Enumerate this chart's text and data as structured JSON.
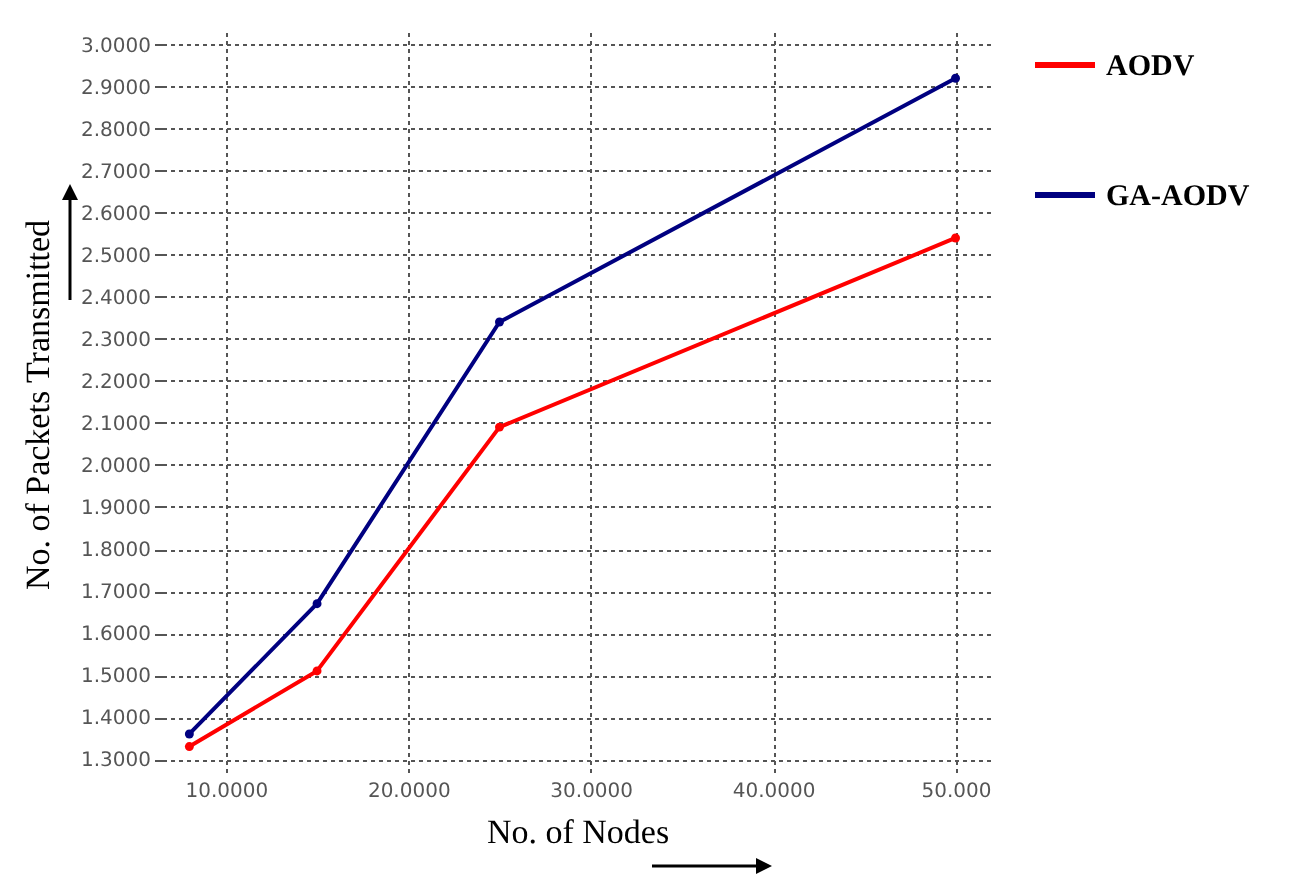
{
  "chart_data": {
    "type": "line",
    "xlabel": "No. of Nodes",
    "ylabel": "No. of Packets Transmitted",
    "x": [
      8,
      15,
      25,
      50
    ],
    "series": [
      {
        "name": "AODV",
        "color": "#ff0000",
        "values": [
          1.33,
          1.51,
          2.09,
          2.54
        ]
      },
      {
        "name": "GA-AODV",
        "color": "#000080",
        "values": [
          1.36,
          1.67,
          2.34,
          2.92
        ]
      }
    ],
    "xlim": [
      6.5,
      52
    ],
    "ylim": [
      1.26,
      3.03
    ],
    "xticks": [
      {
        "value": 10,
        "label": "10.0000"
      },
      {
        "value": 20,
        "label": "20.0000"
      },
      {
        "value": 30,
        "label": "30.0000"
      },
      {
        "value": 40,
        "label": "40.0000"
      },
      {
        "value": 50,
        "label": "50.000"
      }
    ],
    "yticks": [
      {
        "value": 1.3,
        "label": "1.3000"
      },
      {
        "value": 1.4,
        "label": "1.4000"
      },
      {
        "value": 1.5,
        "label": "1.5000"
      },
      {
        "value": 1.6,
        "label": "1.6000"
      },
      {
        "value": 1.7,
        "label": "1.7000"
      },
      {
        "value": 1.8,
        "label": "1.8000"
      },
      {
        "value": 1.9,
        "label": "1.9000"
      },
      {
        "value": 2.0,
        "label": "2.0000"
      },
      {
        "value": 2.1,
        "label": "2.1000"
      },
      {
        "value": 2.2,
        "label": "2.2000"
      },
      {
        "value": 2.3,
        "label": "2.3000"
      },
      {
        "value": 2.4,
        "label": "2.4000"
      },
      {
        "value": 2.5,
        "label": "2.5000"
      },
      {
        "value": 2.6,
        "label": "2.6000"
      },
      {
        "value": 2.7,
        "label": "2.7000"
      },
      {
        "value": 2.8,
        "label": "2.8000"
      },
      {
        "value": 2.9,
        "label": "2.9000"
      },
      {
        "value": 3.0,
        "label": "3.0000"
      }
    ],
    "grid": true,
    "legend": "right",
    "marker": "circle",
    "line_style": "solid"
  }
}
